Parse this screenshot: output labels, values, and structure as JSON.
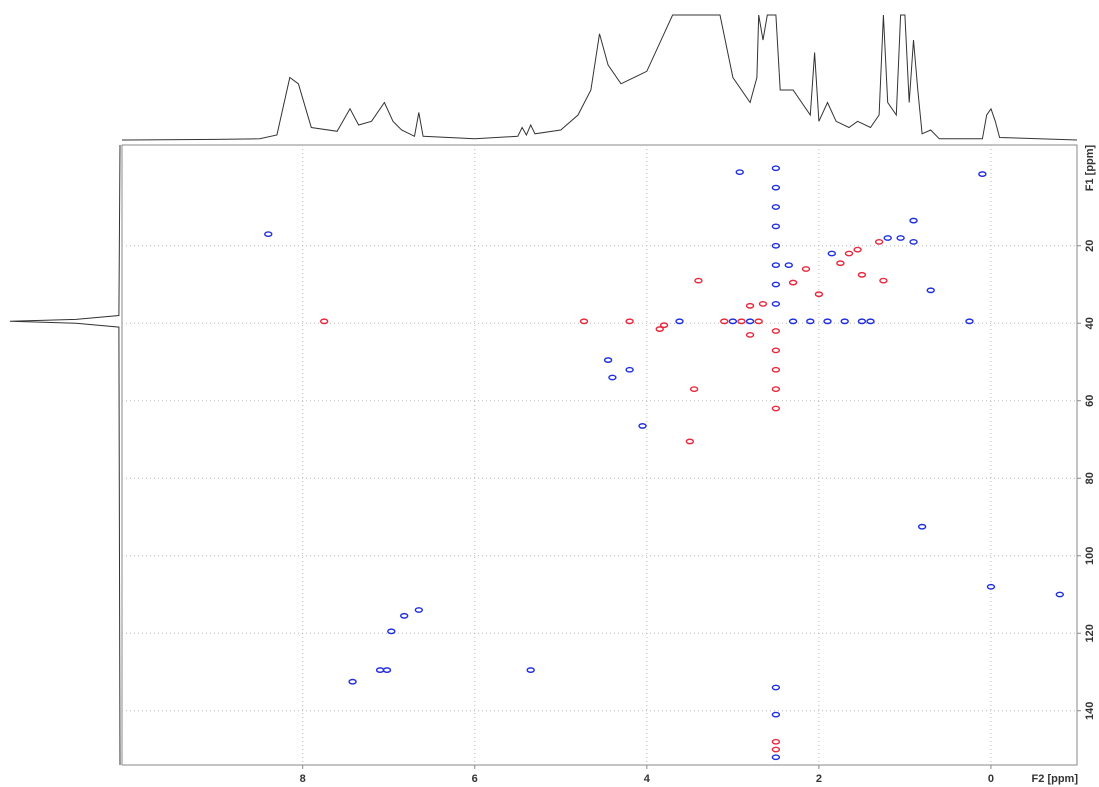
{
  "chart_data": [
    {
      "type": "line",
      "orientation": "horizontal",
      "color": "#333333",
      "ylim": [
        0,
        100
      ],
      "x": [
        10.1,
        9.0,
        8.5,
        8.3,
        8.15,
        8.05,
        7.9,
        7.6,
        7.45,
        7.35,
        7.2,
        7.05,
        6.95,
        6.85,
        6.7,
        6.65,
        6.6,
        6.0,
        5.5,
        5.45,
        5.4,
        5.35,
        5.3,
        5.0,
        4.8,
        4.65,
        4.55,
        4.45,
        4.3,
        4.0,
        3.8,
        3.7,
        3.2,
        3.15,
        3.0,
        2.8,
        2.72,
        2.7,
        2.65,
        2.6,
        2.5,
        2.45,
        2.3,
        2.1,
        2.05,
        2.0,
        1.9,
        1.8,
        1.65,
        1.55,
        1.4,
        1.3,
        1.25,
        1.2,
        1.1,
        1.05,
        1.0,
        0.95,
        0.9,
        0.85,
        0.8,
        0.7,
        0.6,
        0.1,
        0.05,
        0.0,
        -0.05,
        -0.1,
        -1.0
      ],
      "values": [
        0,
        0.5,
        1,
        4,
        50,
        45,
        10,
        7,
        25,
        12,
        15,
        30,
        15,
        8,
        3,
        22,
        3,
        1,
        3,
        10,
        4,
        12,
        5,
        8,
        20,
        40,
        85,
        60,
        45,
        55,
        85,
        100,
        100,
        100,
        50,
        30,
        50,
        100,
        80,
        100,
        100,
        40,
        40,
        20,
        70,
        15,
        30,
        15,
        10,
        15,
        10,
        20,
        100,
        30,
        20,
        100,
        100,
        30,
        80,
        40,
        5,
        8,
        1,
        1,
        20,
        25,
        15,
        2,
        0
      ]
    },
    {
      "type": "line",
      "orientation": "vertical",
      "color": "#333333",
      "xlim": [
        0,
        100
      ],
      "x": [
        -6,
        38,
        39,
        39.5,
        40,
        41,
        154
      ],
      "values": [
        0,
        1,
        40,
        100,
        40,
        1,
        0
      ]
    },
    {
      "type": "scatter",
      "x_label": "F2 [ppm]",
      "y_label": "F1 [ppm]",
      "xlim": [
        10.1,
        -1.0
      ],
      "ylim": [
        -6,
        154
      ],
      "grid": true,
      "xticks": [
        8,
        6,
        4,
        2,
        0
      ],
      "yticks": [
        20,
        40,
        60,
        80,
        100,
        120,
        140
      ],
      "series": [
        {
          "color": "#1f2fe0",
          "x": [
            2.92,
            0.9,
            1.05,
            1.2,
            0.9,
            1.85,
            2.35,
            0.7,
            3.62,
            4.45,
            4.4,
            4.2,
            4.05,
            6.65,
            6.82,
            6.97,
            7.02,
            7.1,
            7.42,
            5.35,
            0.25,
            0.0,
            -0.8,
            0.1,
            8.4,
            0.8,
            2.5,
            2.5,
            2.5,
            2.5,
            2.5,
            2.5,
            2.5,
            2.5,
            3.0,
            2.8,
            2.3,
            2.1,
            1.9,
            1.7,
            1.5,
            1.4,
            2.5,
            2.5,
            2.5
          ],
          "values": [
            1,
            13.5,
            18,
            18,
            19,
            22,
            25,
            31.5,
            39.5,
            49.5,
            54,
            52,
            66.5,
            114,
            115.5,
            119.5,
            129.5,
            129.5,
            132.5,
            129.5,
            39.5,
            108,
            110,
            1.5,
            17,
            92.5,
            0,
            5,
            10,
            15,
            20,
            25,
            30,
            35,
            39.5,
            39.5,
            39.5,
            39.5,
            39.5,
            39.5,
            39.5,
            39.5,
            134,
            141,
            152
          ]
        },
        {
          "color": "#e8283c",
          "x": [
            4.73,
            4.2,
            3.85,
            3.8,
            2.8,
            2.65,
            2.0,
            2.3,
            1.25,
            1.3,
            1.55,
            1.65,
            1.75,
            1.5,
            2.15,
            3.45,
            3.5,
            3.4,
            2.8,
            7.75,
            2.5,
            2.5,
            2.5,
            2.5,
            2.5,
            2.5,
            2.5,
            3.1,
            2.9,
            2.7
          ],
          "values": [
            39.5,
            39.5,
            41.5,
            40.5,
            35.5,
            35,
            32.5,
            29.5,
            29,
            19,
            21,
            22,
            24.5,
            27.5,
            26,
            57,
            70.5,
            29,
            43,
            39.5,
            148,
            150,
            42,
            47,
            52,
            57,
            62,
            39.5,
            39.5,
            39.5
          ]
        }
      ]
    }
  ]
}
